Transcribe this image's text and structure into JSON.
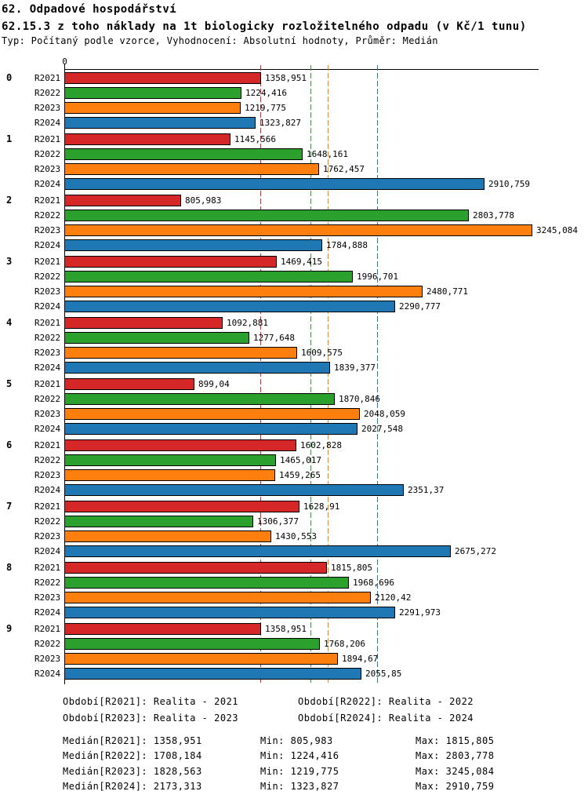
{
  "title1": "62. Odpadové hospodářství",
  "title2": "62.15.3 z toho náklady na 1t biologicky rozložitelného odpadu (v Kč/1 tunu)",
  "subtitle": "Typ: Počítaný podle vzorce, Vyhodnocení: Absolutní hodnoty, Průměr: Medián",
  "axis": {
    "zero_label": "0"
  },
  "series_colors": {
    "R2021": "#d62728",
    "R2022": "#2ca02c",
    "R2023": "#ff7f0e",
    "R2024": "#1f77b4"
  },
  "chart_data": {
    "type": "bar",
    "orientation": "horizontal",
    "title": "62.15.3 z toho náklady na 1t biologicky rozložitelného odpadu (v Kč/1 tunu)",
    "xlabel": "Kč/1 tunu",
    "ylabel": "",
    "x_origin_label": "0",
    "grid": false,
    "series_names": [
      "R2021",
      "R2022",
      "R2023",
      "R2024"
    ],
    "categories": [
      "0",
      "1",
      "2",
      "3",
      "4",
      "5",
      "6",
      "7",
      "8",
      "9"
    ],
    "groups": [
      {
        "label": "0",
        "bars": [
          {
            "series": "R2021",
            "label": "1358,951"
          },
          {
            "series": "R2022",
            "label": "1224,416"
          },
          {
            "series": "R2023",
            "label": "1219,775"
          },
          {
            "series": "R2024",
            "label": "1323,827"
          }
        ]
      },
      {
        "label": "1",
        "bars": [
          {
            "series": "R2021",
            "label": "1145,566"
          },
          {
            "series": "R2022",
            "label": "1648,161"
          },
          {
            "series": "R2023",
            "label": "1762,457"
          },
          {
            "series": "R2024",
            "label": "2910,759"
          }
        ]
      },
      {
        "label": "2",
        "bars": [
          {
            "series": "R2021",
            "label": "805,983"
          },
          {
            "series": "R2022",
            "label": "2803,778"
          },
          {
            "series": "R2023",
            "label": "3245,084"
          },
          {
            "series": "R2024",
            "label": "1784,888"
          }
        ]
      },
      {
        "label": "3",
        "bars": [
          {
            "series": "R2021",
            "label": "1469,415"
          },
          {
            "series": "R2022",
            "label": "1996,701"
          },
          {
            "series": "R2023",
            "label": "2480,771"
          },
          {
            "series": "R2024",
            "label": "2290,777"
          }
        ]
      },
      {
        "label": "4",
        "bars": [
          {
            "series": "R2021",
            "label": "1092,881"
          },
          {
            "series": "R2022",
            "label": "1277,648"
          },
          {
            "series": "R2023",
            "label": "1609,575"
          },
          {
            "series": "R2024",
            "label": "1839,377"
          }
        ]
      },
      {
        "label": "5",
        "bars": [
          {
            "series": "R2021",
            "label": "899,04"
          },
          {
            "series": "R2022",
            "label": "1870,846"
          },
          {
            "series": "R2023",
            "label": "2048,059"
          },
          {
            "series": "R2024",
            "label": "2027,548"
          }
        ]
      },
      {
        "label": "6",
        "bars": [
          {
            "series": "R2021",
            "label": "1602,828"
          },
          {
            "series": "R2022",
            "label": "1465,017"
          },
          {
            "series": "R2023",
            "label": "1459,265"
          },
          {
            "series": "R2024",
            "label": "2351,37"
          }
        ]
      },
      {
        "label": "7",
        "bars": [
          {
            "series": "R2021",
            "label": "1628,91"
          },
          {
            "series": "R2022",
            "label": "1306,377"
          },
          {
            "series": "R2023",
            "label": "1430,553"
          },
          {
            "series": "R2024",
            "label": "2675,272"
          }
        ]
      },
      {
        "label": "8",
        "bars": [
          {
            "series": "R2021",
            "label": "1815,805"
          },
          {
            "series": "R2022",
            "label": "1968,696"
          },
          {
            "series": "R2023",
            "label": "2120,42"
          },
          {
            "series": "R2024",
            "label": "2291,973"
          }
        ]
      },
      {
        "label": "9",
        "bars": [
          {
            "series": "R2021",
            "label": "1358,951"
          },
          {
            "series": "R2022",
            "label": "1768,206"
          },
          {
            "series": "R2023",
            "label": "1894,67"
          },
          {
            "series": "R2024",
            "label": "2055,85"
          }
        ]
      }
    ],
    "medians": {
      "R2021": "1358,951",
      "R2022": "1708,184",
      "R2023": "1828,563",
      "R2024": "2173,313"
    }
  },
  "legend": [
    "Období[R2021]: Realita - 2021",
    "Období[R2022]: Realita - 2022",
    "Období[R2023]: Realita - 2023",
    "Období[R2024]: Realita - 2024"
  ],
  "stats": [
    {
      "median": "Medián[R2021]: 1358,951",
      "min": "Min: 805,983",
      "max": "Max: 1815,805"
    },
    {
      "median": "Medián[R2022]: 1708,184",
      "min": "Min: 1224,416",
      "max": "Max: 2803,778"
    },
    {
      "median": "Medián[R2023]: 1828,563",
      "min": "Min: 1219,775",
      "max": "Max: 3245,084"
    },
    {
      "median": "Medián[R2024]: 2173,313",
      "min": "Min: 1323,827",
      "max": "Max: 2910,759"
    }
  ]
}
